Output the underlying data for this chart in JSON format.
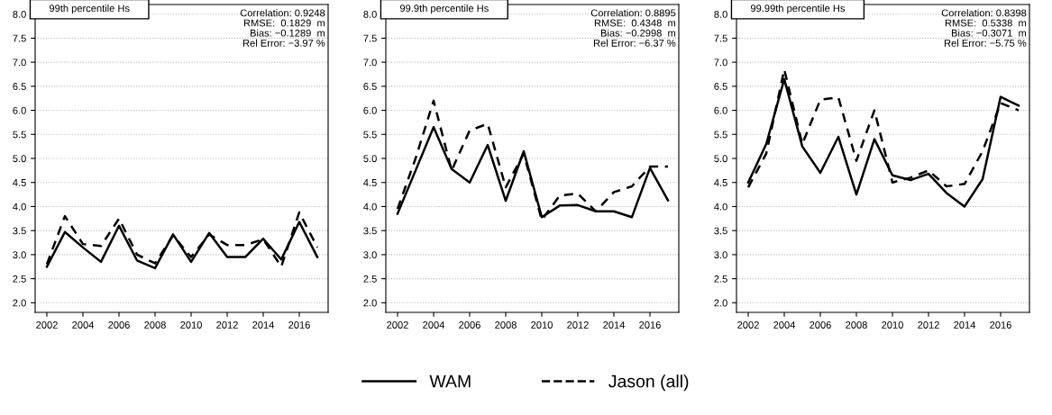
{
  "chart_data": [
    {
      "type": "line",
      "title": "99th percentile Hs",
      "x": [
        2002,
        2003,
        2004,
        2005,
        2006,
        2007,
        2008,
        2009,
        2010,
        2011,
        2012,
        2013,
        2014,
        2015,
        2016,
        2017
      ],
      "series": [
        {
          "name": "WAM",
          "color": "#000000",
          "line_style": "solid",
          "values": [
            2.75,
            3.47,
            3.15,
            2.85,
            3.6,
            2.88,
            2.72,
            3.42,
            2.85,
            3.45,
            2.95,
            2.95,
            3.33,
            2.9,
            3.68,
            2.95
          ]
        },
        {
          "name": "Jason (all)",
          "color": "#000000",
          "line_style": "dashed",
          "values": [
            2.8,
            3.8,
            3.22,
            3.18,
            3.75,
            3.0,
            2.82,
            3.4,
            2.95,
            3.42,
            3.2,
            3.2,
            3.32,
            2.75,
            3.88,
            3.15
          ]
        }
      ],
      "annotations": [
        "Correlation: 0.9248\nRMSE:  0.1829  m\nBias: −0.1289  m\nRel Error: −3.97 %"
      ],
      "xlim": [
        2001.35,
        2017.6
      ],
      "xticks": [
        2002,
        2004,
        2006,
        2008,
        2010,
        2012,
        2014,
        2016
      ],
      "ylim": [
        1.8,
        8.2
      ],
      "yticks": [
        {
          "value": 2,
          "label": "2.0"
        },
        2.5,
        {
          "value": 3,
          "label": "3.0"
        },
        3.5,
        {
          "value": 4,
          "label": "4.0"
        },
        4.5,
        {
          "value": 5,
          "label": "5.0"
        },
        5.5,
        {
          "value": 6,
          "label": "6.0"
        },
        6.5,
        {
          "value": 7,
          "label": "7.0"
        },
        7.5,
        {
          "value": 8,
          "label": "8.0"
        }
      ],
      "grid": "y",
      "legend": "bottom"
    },
    {
      "type": "line",
      "title": "99.9th percentile Hs",
      "x": [
        2002,
        2003,
        2004,
        2005,
        2006,
        2007,
        2008,
        2009,
        2010,
        2011,
        2012,
        2013,
        2014,
        2015,
        2016,
        2017
      ],
      "series": [
        {
          "color": "#000000",
          "line_style": "solid",
          "values": [
            3.85,
            4.75,
            5.65,
            4.78,
            4.5,
            5.28,
            4.12,
            5.15,
            3.78,
            4.02,
            4.03,
            3.9,
            3.9,
            3.78,
            4.8,
            4.13
          ]
        },
        {
          "color": "#000000",
          "line_style": "dashed",
          "values": [
            3.95,
            5.0,
            6.2,
            4.75,
            5.58,
            5.72,
            4.4,
            5.1,
            3.72,
            4.23,
            4.27,
            3.9,
            4.3,
            4.42,
            4.83,
            4.83
          ]
        }
      ],
      "annotations": [
        "Correlation: 0.8895\nRMSE:  0.4348  m\nBias: −0.2998  m\nRel Error: −6.37 %"
      ],
      "xlim": [
        2001.35,
        2017.6
      ],
      "xticks": [
        2002,
        2004,
        2006,
        2008,
        2010,
        2012,
        2014,
        2016
      ],
      "ylim": [
        1.8,
        8.2
      ],
      "yticks": [
        {
          "value": 2,
          "label": "2.0"
        },
        2.5,
        {
          "value": 3,
          "label": "3.0"
        },
        3.5,
        {
          "value": 4,
          "label": "4.0"
        },
        4.5,
        {
          "value": 5,
          "label": "5.0"
        },
        5.5,
        {
          "value": 6,
          "label": "6.0"
        },
        6.5,
        {
          "value": 7,
          "label": "7.0"
        },
        7.5,
        {
          "value": 8,
          "label": "8.0"
        }
      ],
      "grid": "y"
    },
    {
      "type": "line",
      "title": "99.99th percentile Hs",
      "x": [
        2002,
        2003,
        2004,
        2005,
        2006,
        2007,
        2008,
        2009,
        2010,
        2011,
        2012,
        2013,
        2014,
        2015,
        2016,
        2017
      ],
      "series": [
        {
          "color": "#000000",
          "line_style": "solid",
          "values": [
            4.5,
            5.3,
            6.65,
            5.25,
            4.7,
            5.45,
            4.25,
            5.4,
            4.65,
            4.55,
            4.68,
            4.28,
            4.0,
            4.57,
            6.28,
            6.1
          ]
        },
        {
          "color": "#000000",
          "line_style": "dashed",
          "values": [
            4.4,
            5.1,
            6.85,
            5.3,
            6.22,
            6.27,
            4.95,
            6.0,
            4.5,
            4.6,
            4.75,
            4.42,
            4.47,
            5.15,
            6.15,
            6.0
          ]
        }
      ],
      "annotations": [
        "Correlation: 0.8398\nRMSE:  0.5338  m\nBias: −0.3071  m\nRel Error: −5.75 %"
      ],
      "xlim": [
        2001.35,
        2017.6
      ],
      "xticks": [
        2002,
        2004,
        2006,
        2008,
        2010,
        2012,
        2014,
        2016
      ],
      "ylim": [
        1.8,
        8.2
      ],
      "yticks": [
        {
          "value": 2,
          "label": "2.0"
        },
        2.5,
        {
          "value": 3,
          "label": "3.0"
        },
        3.5,
        {
          "value": 4,
          "label": "4.0"
        },
        4.5,
        {
          "value": 5,
          "label": "5.0"
        },
        5.5,
        {
          "value": 6,
          "label": "6.0"
        },
        6.5,
        {
          "value": 7,
          "label": "7.0"
        },
        7.5,
        {
          "value": 8,
          "label": "8.0"
        }
      ],
      "grid": "y"
    }
  ]
}
